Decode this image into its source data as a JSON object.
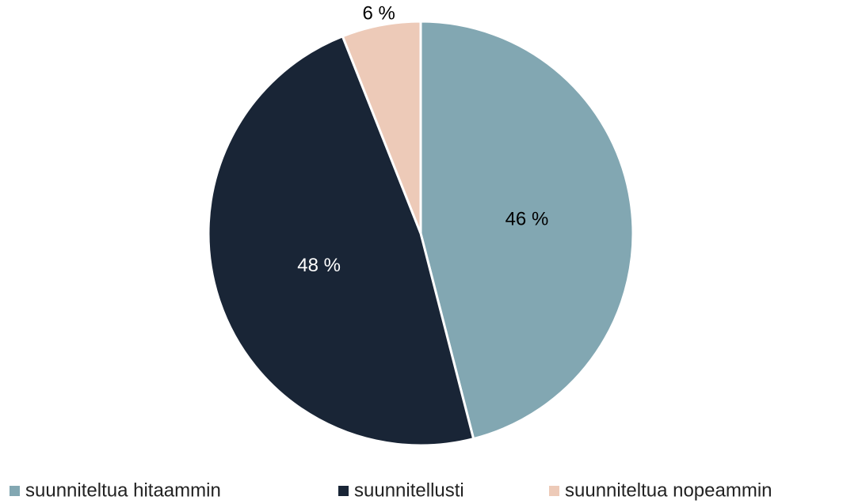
{
  "chart_data": {
    "type": "pie",
    "categories": [
      "suunniteltua hitaammin",
      "suunnitellusti",
      "suunniteltua nopeammin"
    ],
    "values": [
      46,
      48,
      6
    ],
    "value_labels": [
      "46 %",
      "48 %",
      "6 %"
    ],
    "colors": [
      "#82a7b2",
      "#192536",
      "#edcab8"
    ],
    "label_colors": [
      "#000000",
      "#ffffff",
      "#000000"
    ],
    "legend": "bottom"
  }
}
